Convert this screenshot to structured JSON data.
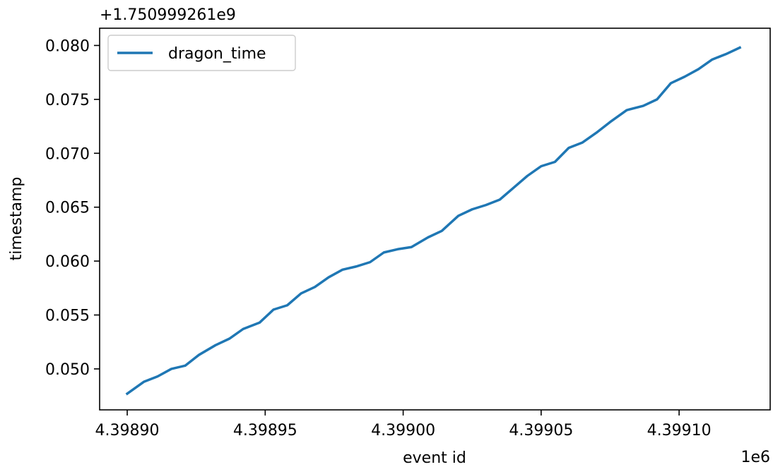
{
  "chart_data": {
    "type": "line",
    "xlabel": "event id",
    "ylabel": "timestamp",
    "x_offset_label": "1e6",
    "y_offset_label": "+1.750999261e9",
    "xlim": [
      4.39889,
      4.399133
    ],
    "ylim": [
      0.0462,
      0.0816
    ],
    "x_ticks": [
      4.3989,
      4.39895,
      4.399,
      4.39905,
      4.3991
    ],
    "x_tick_labels": [
      "4.39890",
      "4.39895",
      "4.39900",
      "4.39905",
      "4.39910"
    ],
    "y_ticks": [
      0.05,
      0.055,
      0.06,
      0.065,
      0.07,
      0.075,
      0.08
    ],
    "y_tick_labels": [
      "0.050",
      "0.055",
      "0.060",
      "0.065",
      "0.070",
      "0.075",
      "0.080"
    ],
    "grid": false,
    "legend_position": "top-left",
    "series": [
      {
        "name": "dragon_time",
        "color": "#1f77b4",
        "x": [
          4.3989,
          4.398906,
          4.398911,
          4.398916,
          4.398921,
          4.398926,
          4.398932,
          4.398937,
          4.398942,
          4.398948,
          4.398953,
          4.398958,
          4.398963,
          4.398968,
          4.398973,
          4.398978,
          4.398983,
          4.398988,
          4.398993,
          4.398998,
          4.399003,
          4.399009,
          4.399014,
          4.39902,
          4.399025,
          4.39903,
          4.399035,
          4.39904,
          4.399045,
          4.39905,
          4.399055,
          4.39906,
          4.399065,
          4.39907,
          4.399075,
          4.399081,
          4.399087,
          4.399092,
          4.399097,
          4.399102,
          4.399107,
          4.399112,
          4.399117,
          4.399122
        ],
        "values": [
          0.0477,
          0.0488,
          0.0493,
          0.05,
          0.0503,
          0.0513,
          0.0522,
          0.0528,
          0.0537,
          0.0543,
          0.0555,
          0.0559,
          0.057,
          0.0576,
          0.0585,
          0.0592,
          0.0595,
          0.0599,
          0.0608,
          0.0611,
          0.0613,
          0.0622,
          0.0628,
          0.0642,
          0.0648,
          0.0652,
          0.0657,
          0.0668,
          0.0679,
          0.0688,
          0.0692,
          0.0705,
          0.071,
          0.0719,
          0.0729,
          0.074,
          0.0744,
          0.075,
          0.0765,
          0.0771,
          0.0778,
          0.0787,
          0.0792,
          0.0798
        ]
      }
    ]
  }
}
